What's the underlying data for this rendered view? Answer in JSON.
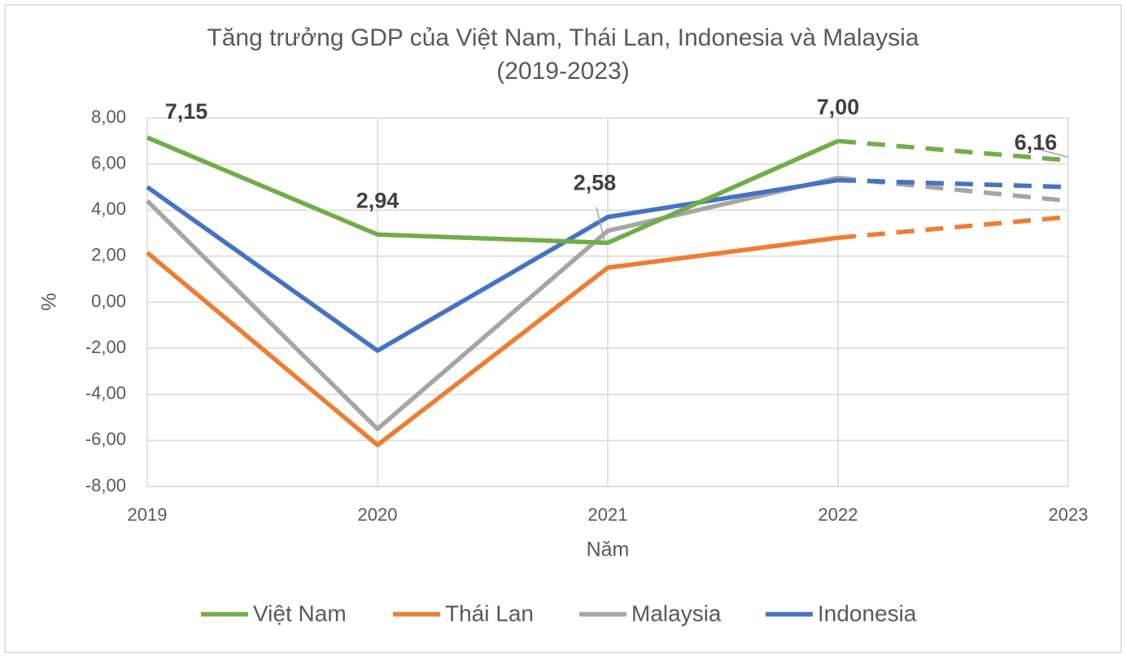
{
  "chart_data": {
    "type": "line",
    "title": "Tăng trưởng GDP của Việt Nam, Thái Lan, Indonesia và Malaysia",
    "subtitle": "(2019-2023)",
    "x_label": "Năm",
    "y_label": "%",
    "categories": [
      "2019",
      "2020",
      "2021",
      "2022",
      "2023"
    ],
    "dashed_from_index": 3,
    "series": [
      {
        "name": "Việt Nam",
        "color": "#70ad47",
        "values": [
          7.15,
          2.94,
          2.58,
          7.0,
          6.16
        ],
        "value_labels": [
          "7,15",
          "2,94",
          "2,58",
          "7,00",
          "6,16"
        ]
      },
      {
        "name": "Thái Lan",
        "color": "#ed7d31",
        "values": [
          2.15,
          -6.2,
          1.5,
          2.8,
          3.7
        ]
      },
      {
        "name": "Malaysia",
        "color": "#a5a5a5",
        "values": [
          4.4,
          -5.5,
          3.1,
          5.4,
          4.4
        ]
      },
      {
        "name": "Indonesia",
        "color": "#4472c4",
        "values": [
          5.0,
          -2.1,
          3.7,
          5.3,
          5.0
        ]
      }
    ],
    "ylim": [
      -8,
      8
    ],
    "yticks": [
      {
        "value": -8,
        "label": "-8,00"
      },
      {
        "value": -6,
        "label": "-6,00"
      },
      {
        "value": -4,
        "label": "-4,00"
      },
      {
        "value": -2,
        "label": "-2,00"
      },
      {
        "value": 0,
        "label": "0,00"
      },
      {
        "value": 2,
        "label": "2,00"
      },
      {
        "value": 4,
        "label": "4,00"
      },
      {
        "value": 6,
        "label": "6,00"
      },
      {
        "value": 8,
        "label": "8,00"
      }
    ],
    "grid": true,
    "legend": "bottom"
  }
}
